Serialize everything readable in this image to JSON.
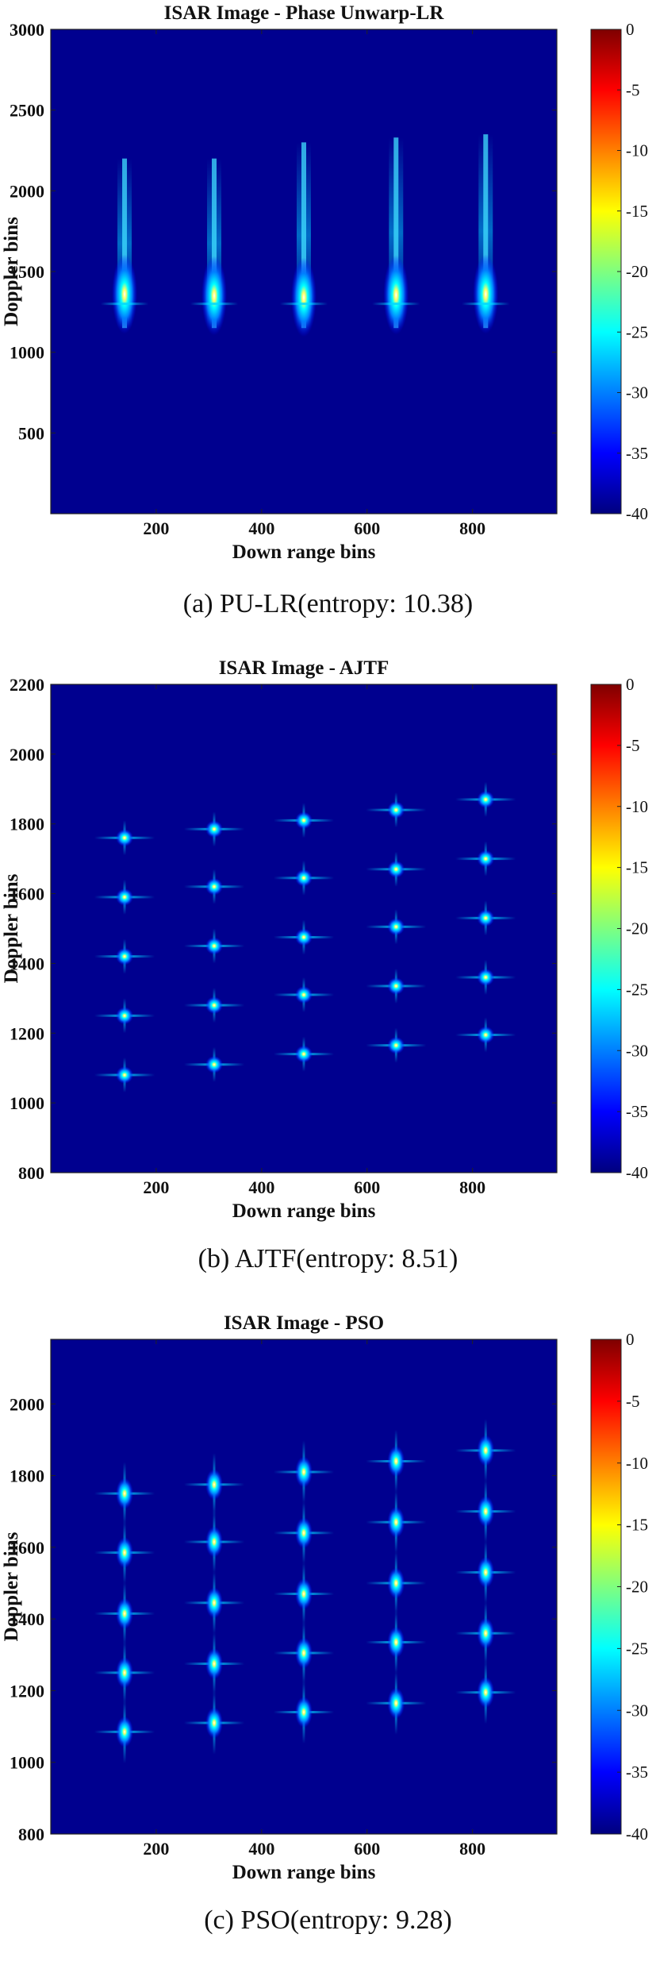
{
  "colors": {
    "background": "#00008f",
    "colormap": [
      "#00007f",
      "#0000ff",
      "#007fff",
      "#00ffff",
      "#7fff7f",
      "#ffff00",
      "#ff7f00",
      "#ff0000",
      "#7f0000"
    ]
  },
  "chart_data": [
    {
      "type": "heatmap",
      "title": "ISAR Image - Phase Unwarp-LR",
      "xlabel": "Down range bins",
      "ylabel": "Doppler bins",
      "xlim": [
        0,
        960
      ],
      "ylim": [
        0,
        3000
      ],
      "xticks": [
        "200",
        "400",
        "600",
        "800"
      ],
      "xtick_values": [
        200,
        400,
        600,
        800
      ],
      "yticks": [
        "500",
        "1000",
        "1500",
        "2000",
        "2500",
        "3000"
      ],
      "ytick_values": [
        500,
        1000,
        1500,
        2000,
        2500,
        3000
      ],
      "colorbar": {
        "min": -40,
        "max": 0,
        "ticks": [
          "0",
          "-5",
          "-10",
          "-15",
          "-20",
          "-25",
          "-30",
          "-35",
          "-40"
        ]
      },
      "scatterers": [
        {
          "x": 140,
          "y": 1360,
          "top": 2200,
          "bottom": 1150
        },
        {
          "x": 310,
          "y": 1350,
          "top": 2200,
          "bottom": 1150
        },
        {
          "x": 480,
          "y": 1340,
          "top": 2300,
          "bottom": 1150
        },
        {
          "x": 655,
          "y": 1355,
          "top": 2330,
          "bottom": 1150
        },
        {
          "x": 825,
          "y": 1360,
          "top": 2350,
          "bottom": 1150
        }
      ],
      "caption": "(a)  PU-LR(entropy:  10.38)"
    },
    {
      "type": "heatmap",
      "title": "ISAR Image - AJTF",
      "xlabel": "Down range bins",
      "ylabel": "Doppler bins",
      "xlim": [
        0,
        960
      ],
      "ylim": [
        800,
        2200
      ],
      "xticks": [
        "200",
        "400",
        "600",
        "800"
      ],
      "xtick_values": [
        200,
        400,
        600,
        800
      ],
      "yticks": [
        "800",
        "1000",
        "1200",
        "1400",
        "1600",
        "1800",
        "2000",
        "2200"
      ],
      "ytick_values": [
        800,
        1000,
        1200,
        1400,
        1600,
        1800,
        2000,
        2200
      ],
      "colorbar": {
        "min": -40,
        "max": 0,
        "ticks": [
          "0",
          "-5",
          "-10",
          "-15",
          "-20",
          "-25",
          "-30",
          "-35",
          "-40"
        ]
      },
      "points": [
        [
          140,
          1080
        ],
        [
          140,
          1250
        ],
        [
          140,
          1420
        ],
        [
          140,
          1590
        ],
        [
          140,
          1760
        ],
        [
          310,
          1110
        ],
        [
          310,
          1280
        ],
        [
          310,
          1450
        ],
        [
          310,
          1620
        ],
        [
          310,
          1785
        ],
        [
          480,
          1140
        ],
        [
          480,
          1310
        ],
        [
          480,
          1475
        ],
        [
          480,
          1645
        ],
        [
          480,
          1810
        ],
        [
          655,
          1165
        ],
        [
          655,
          1335
        ],
        [
          655,
          1505
        ],
        [
          655,
          1670
        ],
        [
          655,
          1840
        ],
        [
          825,
          1195
        ],
        [
          825,
          1360
        ],
        [
          825,
          1530
        ],
        [
          825,
          1700
        ],
        [
          825,
          1870
        ]
      ],
      "caption": "(b)  AJTF(entropy:  8.51)"
    },
    {
      "type": "heatmap",
      "title": "ISAR Image - PSO",
      "xlabel": "Down range bins",
      "ylabel": "Doppler bins",
      "xlim": [
        0,
        960
      ],
      "ylim": [
        800,
        2180
      ],
      "xticks": [
        "200",
        "400",
        "600",
        "800"
      ],
      "xtick_values": [
        200,
        400,
        600,
        800
      ],
      "yticks": [
        "800",
        "1000",
        "1200",
        "1400",
        "1600",
        "1800",
        "2000"
      ],
      "ytick_values": [
        800,
        1000,
        1200,
        1400,
        1600,
        1800,
        2000
      ],
      "colorbar": {
        "min": -40,
        "max": 0,
        "ticks": [
          "0",
          "-5",
          "-10",
          "-15",
          "-20",
          "-25",
          "-30",
          "-35",
          "-40"
        ]
      },
      "points": [
        [
          140,
          1085
        ],
        [
          140,
          1250
        ],
        [
          140,
          1415
        ],
        [
          140,
          1585
        ],
        [
          140,
          1750
        ],
        [
          310,
          1110
        ],
        [
          310,
          1275
        ],
        [
          310,
          1445
        ],
        [
          310,
          1615
        ],
        [
          310,
          1775
        ],
        [
          480,
          1140
        ],
        [
          480,
          1305
        ],
        [
          480,
          1470
        ],
        [
          480,
          1640
        ],
        [
          480,
          1810
        ],
        [
          655,
          1165
        ],
        [
          655,
          1335
        ],
        [
          655,
          1500
        ],
        [
          655,
          1670
        ],
        [
          655,
          1840
        ],
        [
          825,
          1195
        ],
        [
          825,
          1360
        ],
        [
          825,
          1530
        ],
        [
          825,
          1700
        ],
        [
          825,
          1870
        ]
      ],
      "caption": "(c)  PSO(entropy:  9.28)"
    }
  ]
}
